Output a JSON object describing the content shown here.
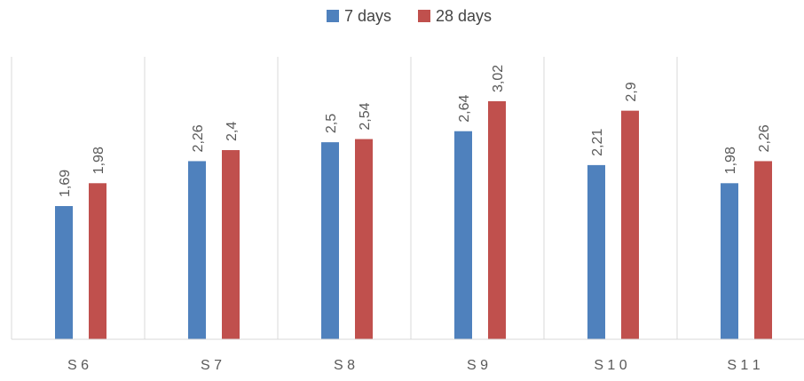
{
  "chart_data": {
    "type": "bar",
    "categories": [
      "S6",
      "S7",
      "S8",
      "S9",
      "S10",
      "S11"
    ],
    "category_display": [
      "S 6",
      "S 7",
      "S 8",
      "S 9",
      "S 1 0",
      "S 1 1"
    ],
    "series": [
      {
        "name": "7 days",
        "values": [
          1.69,
          2.26,
          2.5,
          2.64,
          2.21,
          1.98
        ],
        "labels": [
          "1,69",
          "2,26",
          "2,5",
          "2,64",
          "2,21",
          "1,98"
        ],
        "color": "#4f81bd"
      },
      {
        "name": "28 days",
        "values": [
          1.98,
          2.4,
          2.54,
          3.02,
          2.9,
          2.26
        ],
        "labels": [
          "1,98",
          "2,4",
          "2,54",
          "3,02",
          "2,9",
          "2,26"
        ],
        "color": "#c0504d"
      }
    ],
    "title": "",
    "xlabel": "",
    "ylabel": "",
    "ylim": [
      0,
      3.02
    ],
    "grid": "vertical category separators",
    "legend": "top-center",
    "data_label_orientation": "vertical"
  }
}
